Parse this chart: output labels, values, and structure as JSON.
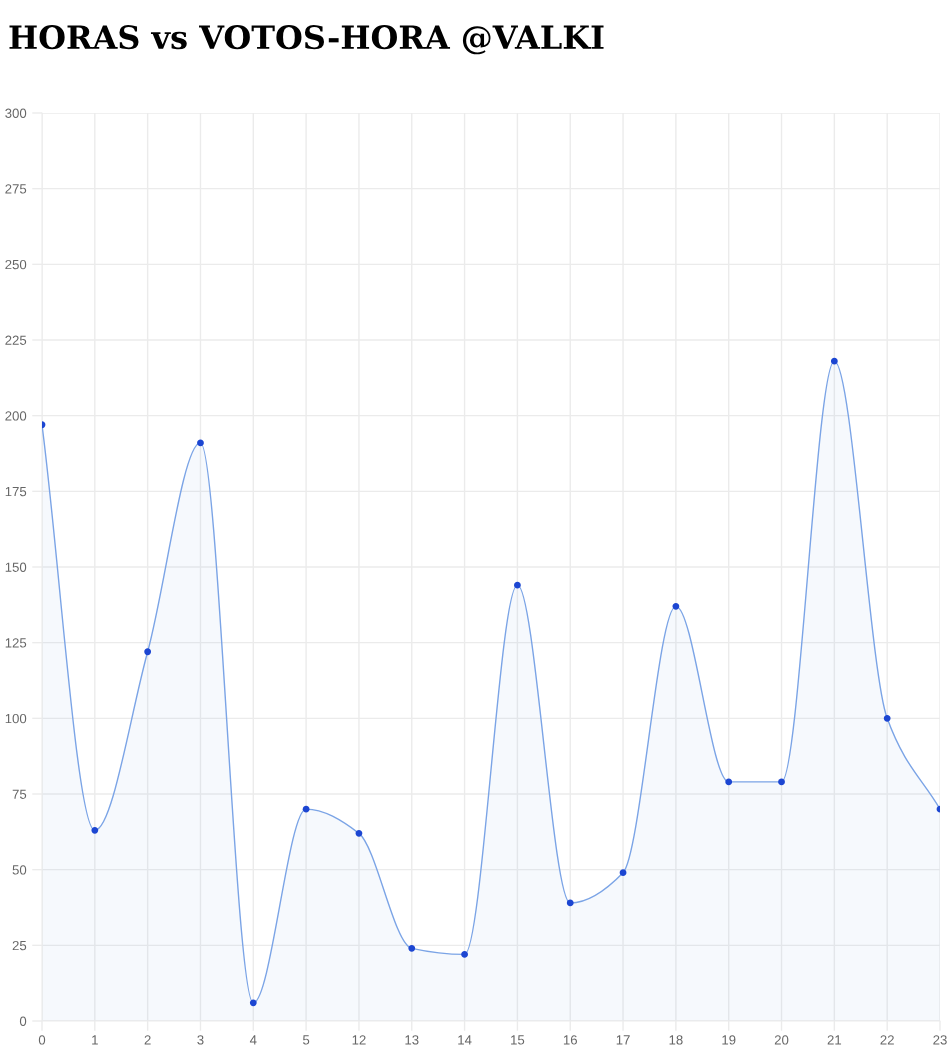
{
  "chart_data": {
    "type": "area",
    "title": "HORAS vs VOTOS-HORA @VALKI",
    "categories": [
      "0",
      "1",
      "2",
      "3",
      "4",
      "5",
      "12",
      "13",
      "14",
      "15",
      "16",
      "17",
      "18",
      "19",
      "20",
      "21",
      "22",
      "23"
    ],
    "series": [
      {
        "color": "#7ba4e6",
        "colors": [
          "#1c46d2",
          "#1c46d2",
          "#1c46d2",
          "#1c46d2",
          "#1c46d2",
          "#1c46d2",
          "#1c46d2",
          "#1c46d2",
          "#1c46d2",
          "#1c46d2",
          "#1c46d2",
          "#1c46d2",
          "#1c46d2",
          "#1c46d2",
          "#1c46d2",
          "#1c46d2",
          "#1c46d2",
          "#1c46d2"
        ],
        "values": [
          197,
          63,
          122,
          191,
          6,
          70,
          62,
          24,
          22,
          144,
          39,
          49,
          137,
          79,
          79,
          218,
          100,
          70
        ]
      }
    ],
    "ylim": [
      0,
      300
    ],
    "yticks": [
      0,
      25,
      50,
      75,
      100,
      125,
      150,
      175,
      200,
      225,
      250,
      275,
      300
    ],
    "grid": true,
    "marker": "circle",
    "line_style": "solid"
  }
}
